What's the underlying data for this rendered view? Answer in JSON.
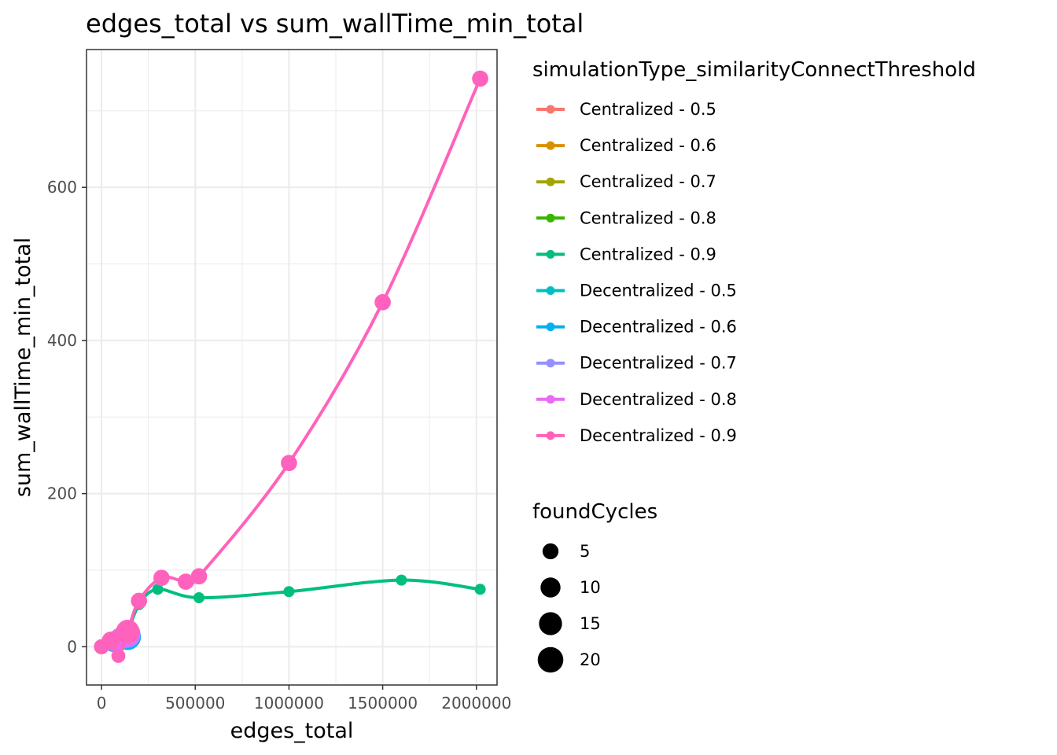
{
  "chart_data": {
    "type": "line",
    "title": "edges_total  vs  sum_wallTime_min_total",
    "xlabel": "edges_total",
    "ylabel": "sum_wallTime_min_total",
    "xlim": [
      -80000,
      2110000
    ],
    "ylim": [
      -50,
      780
    ],
    "x_ticks": [
      0,
      500000,
      1000000,
      1500000,
      2000000
    ],
    "x_tick_labels": [
      "0",
      "500000",
      "1000000",
      "1500000",
      "2000000"
    ],
    "y_ticks": [
      0,
      200,
      400,
      600
    ],
    "y_tick_labels": [
      "0",
      "200",
      "400",
      "600"
    ],
    "grid": true,
    "legend_color_title": "simulationType_similarityConnectThreshold",
    "legend_size_title": "foundCycles",
    "legend_placement": "right",
    "series": [
      {
        "name": "Centralized - 0.5",
        "color": "#F8766D",
        "points": [
          [
            20000,
            1,
            2
          ],
          [
            60000,
            5,
            4
          ],
          [
            100000,
            10,
            8
          ],
          [
            130000,
            15,
            12
          ]
        ]
      },
      {
        "name": "Centralized - 0.6",
        "color": "#D89000",
        "points": [
          [
            20000,
            1,
            2
          ],
          [
            60000,
            4,
            4
          ],
          [
            100000,
            9,
            8
          ],
          [
            130000,
            14,
            12
          ]
        ]
      },
      {
        "name": "Centralized - 0.7",
        "color": "#A3A500",
        "points": [
          [
            20000,
            1,
            2
          ],
          [
            60000,
            4,
            4
          ],
          [
            100000,
            8,
            8
          ],
          [
            130000,
            13,
            12
          ]
        ]
      },
      {
        "name": "Centralized - 0.8",
        "color": "#39B600",
        "points": [
          [
            20000,
            1,
            2
          ],
          [
            60000,
            4,
            4
          ],
          [
            100000,
            8,
            8
          ],
          [
            130000,
            13,
            12
          ]
        ]
      },
      {
        "name": "Centralized - 0.9",
        "color": "#00BF7D",
        "points": [
          [
            60000,
            4,
            2
          ],
          [
            130000,
            15,
            4
          ],
          [
            200000,
            55,
            2
          ],
          [
            300000,
            75,
            2
          ],
          [
            520000,
            64,
            2
          ],
          [
            1000000,
            72,
            2
          ],
          [
            1600000,
            87,
            2
          ],
          [
            2020000,
            75,
            2
          ]
        ]
      },
      {
        "name": "Decentralized - 0.5",
        "color": "#00BFC4",
        "points": [
          [
            20000,
            1,
            2
          ],
          [
            60000,
            4,
            6
          ],
          [
            100000,
            9,
            10
          ],
          [
            140000,
            14,
            16
          ]
        ]
      },
      {
        "name": "Decentralized - 0.6",
        "color": "#00B0F6",
        "points": [
          [
            20000,
            1,
            2
          ],
          [
            60000,
            4,
            6
          ],
          [
            100000,
            9,
            12
          ],
          [
            140000,
            13,
            20
          ]
        ]
      },
      {
        "name": "Decentralized - 0.7",
        "color": "#9590FF",
        "points": [
          [
            20000,
            1,
            2
          ],
          [
            60000,
            5,
            6
          ],
          [
            100000,
            10,
            12
          ],
          [
            140000,
            15,
            18
          ]
        ]
      },
      {
        "name": "Decentralized - 0.8",
        "color": "#E76BF3",
        "points": [
          [
            20000,
            1,
            2
          ],
          [
            60000,
            6,
            6
          ],
          [
            100000,
            11,
            12
          ],
          [
            140000,
            17,
            18
          ]
        ]
      },
      {
        "name": "Decentralized - 0.9",
        "color": "#FF62BC",
        "points": [
          [
            0,
            0,
            5
          ],
          [
            50000,
            8,
            8
          ],
          [
            90000,
            -12,
            4
          ],
          [
            140000,
            20,
            15
          ],
          [
            200000,
            60,
            6
          ],
          [
            320000,
            90,
            6
          ],
          [
            450000,
            85,
            6
          ],
          [
            520000,
            92,
            6
          ],
          [
            1000000,
            240,
            6
          ],
          [
            1500000,
            450,
            6
          ],
          [
            2020000,
            742,
            6
          ]
        ]
      }
    ],
    "size_legend": [
      {
        "label": "5",
        "value": 5
      },
      {
        "label": "10",
        "value": 10
      },
      {
        "label": "15",
        "value": 15
      },
      {
        "label": "20",
        "value": 20
      }
    ]
  }
}
